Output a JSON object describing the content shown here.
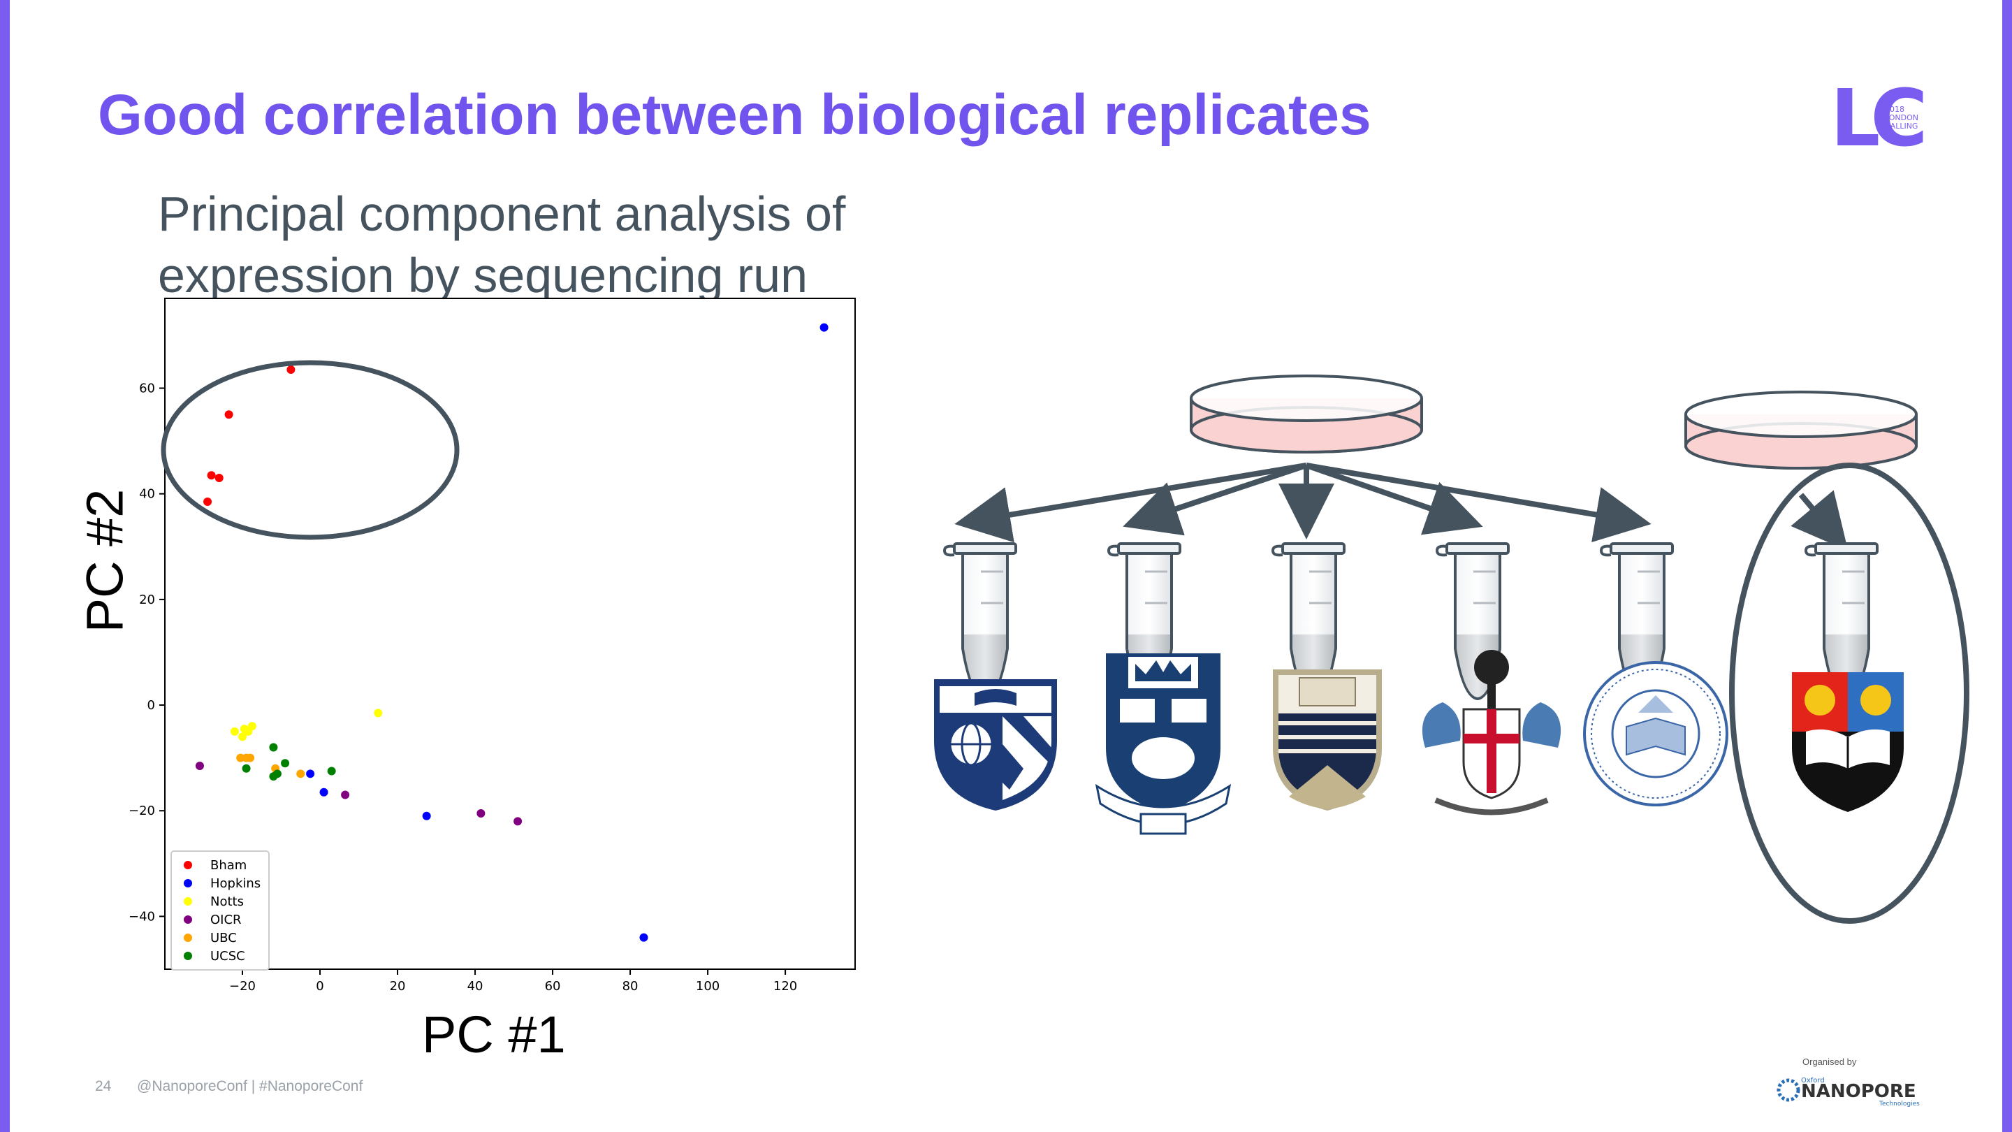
{
  "slide": {
    "title": "Good correlation between biological replicates",
    "subtitle_line1": "Principal component analysis of",
    "subtitle_line2": "expression by sequencing run",
    "page_number": "24",
    "footer_handle": "@NanoporeConf | #NanoporeConf",
    "logo_year": "2018",
    "logo_line1": "LONDON",
    "logo_line2": "CALLING",
    "logo_letters": "LC",
    "organised_by": "Organised by",
    "org_name": "NANOPORE",
    "org_prefix": "Oxford",
    "org_suffix": "Technologies",
    "colors": {
      "accent": "#7153ee",
      "text": "#45535e",
      "annot": "#45535e"
    }
  },
  "chart_data": {
    "type": "scatter",
    "xlabel": "PC #1",
    "ylabel": "PC #2",
    "xlim": [
      -40,
      138
    ],
    "ylim": [
      -50,
      77
    ],
    "xticks": [
      -20,
      0,
      20,
      40,
      60,
      80,
      100,
      120
    ],
    "yticks": [
      -40,
      -20,
      0,
      20,
      40,
      60
    ],
    "legend_position": "lower-left",
    "series": [
      {
        "name": "Bham",
        "color": "#ff0000",
        "points": [
          [
            -7.5,
            63.5
          ],
          [
            -23.5,
            55
          ],
          [
            -28,
            43.5
          ],
          [
            -26,
            43
          ],
          [
            -29,
            38.5
          ]
        ]
      },
      {
        "name": "Hopkins",
        "color": "#0000ff",
        "points": [
          [
            130,
            71.5
          ],
          [
            -2.5,
            -13
          ],
          [
            1,
            -16.5
          ],
          [
            27.5,
            -21
          ],
          [
            83.5,
            -44
          ]
        ]
      },
      {
        "name": "Notts",
        "color": "#ffff00",
        "points": [
          [
            15,
            -1.5
          ],
          [
            -22,
            -5
          ],
          [
            -19.5,
            -4.5
          ],
          [
            -18.5,
            -5
          ],
          [
            -20,
            -6
          ],
          [
            -17.5,
            -4
          ]
        ]
      },
      {
        "name": "OICR",
        "color": "#800080",
        "points": [
          [
            -31,
            -11.5
          ],
          [
            6.5,
            -17
          ],
          [
            41.5,
            -20.5
          ],
          [
            51,
            -22
          ]
        ]
      },
      {
        "name": "UBC",
        "color": "#ffa500",
        "points": [
          [
            -20.5,
            -10
          ],
          [
            -19,
            -10
          ],
          [
            -18,
            -10
          ],
          [
            -11.5,
            -12
          ],
          [
            -5,
            -13
          ]
        ]
      },
      {
        "name": "UCSC",
        "color": "#008000",
        "points": [
          [
            -12,
            -8
          ],
          [
            -9,
            -11
          ],
          [
            -19,
            -12
          ],
          [
            -11,
            -13
          ],
          [
            -12,
            -13.5
          ],
          [
            3,
            -12.5
          ]
        ]
      }
    ]
  }
}
